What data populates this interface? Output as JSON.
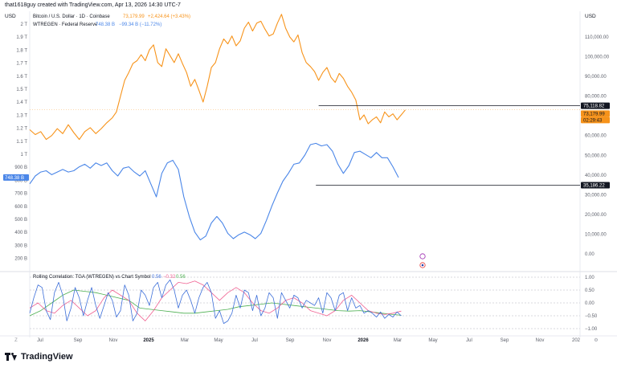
{
  "header": {
    "credit": "that1618guy created with TradingView.com, Apr 13, 2026 14:30 UTC-7"
  },
  "brand": {
    "name": "TradingView"
  },
  "colors": {
    "btc": "#f7931a",
    "walcl": "#4a86e8",
    "corr_blue": "#3d6fd9",
    "corr_red": "#f06292",
    "corr_green": "#4caf50",
    "grid": "#eef0f3",
    "axis_text": "#5d606b"
  },
  "chart_data": {
    "type": "line",
    "currency_left": "USD",
    "currency_right": "USD",
    "left_axis_labels": [
      "2 T",
      "1.9 T",
      "1.8 T",
      "1.7 T",
      "1.6 T",
      "1.5 T",
      "1.4 T",
      "1.3 T",
      "1.2 T",
      "1.1 T",
      "1 T",
      "900 B",
      "800 B",
      "700 B",
      "600 B",
      "500 B",
      "400 B",
      "300 B",
      "200 B"
    ],
    "right_axis_labels": [
      "110,000.00",
      "100,000.00",
      "90,000.00",
      "80,000.00",
      "70,000.00",
      "60,000.00",
      "50,000.00",
      "40,000.00",
      "30,000.00",
      "20,000.00",
      "10,000.00",
      "0.00"
    ],
    "right_axis_values": [
      110000,
      100000,
      90000,
      80000,
      70000,
      60000,
      50000,
      40000,
      30000,
      20000,
      10000,
      0
    ],
    "time_labels": [
      "Jul",
      "Sep",
      "Nov",
      "2025",
      "Mar",
      "May",
      "Jul",
      "Sep",
      "Nov",
      "2026",
      "Mar",
      "May",
      "Jul",
      "Sep",
      "Nov",
      "202"
    ],
    "legend_btc": {
      "label": "Bitcoin / U.S. Dollar · 1D · Coinbase",
      "price": "73,179.99",
      "change": "+2,424.64 (+3.43%)"
    },
    "legend_walcl": {
      "label": "WTREGEN · Federal Reserve",
      "value": "748.38 B",
      "change": "−99.34 B (−11.72%)"
    },
    "indicator": {
      "title": "Rolling Correlation: TGA (WTREGEN) vs Chart Symbol",
      "v1": "0.56",
      "v2": "−0.32",
      "v3": "0.56",
      "axis_labels": [
        "1.00",
        "0.50",
        "0.00",
        "−0.50",
        "−1.00"
      ],
      "axis_values": [
        1.0,
        0.5,
        0.0,
        -0.5,
        -1.0
      ]
    },
    "price_tags": {
      "hline_btc": "75,118.82",
      "btc_last": "73,179.99",
      "countdown": "02:29:43",
      "hline_walcl": "35,186.22",
      "walcl_last": "748.38 B"
    },
    "btc_price": [
      [
        0,
        63000
      ],
      [
        4,
        60500
      ],
      [
        8,
        62000
      ],
      [
        12,
        58000
      ],
      [
        16,
        60000
      ],
      [
        20,
        63500
      ],
      [
        24,
        61000
      ],
      [
        28,
        65500
      ],
      [
        32,
        61500
      ],
      [
        36,
        58000
      ],
      [
        40,
        62000
      ],
      [
        44,
        64000
      ],
      [
        48,
        61000
      ],
      [
        52,
        63500
      ],
      [
        56,
        66500
      ],
      [
        60,
        69000
      ],
      [
        63,
        72000
      ],
      [
        66,
        80000
      ],
      [
        69,
        88000
      ],
      [
        72,
        92000
      ],
      [
        75,
        96500
      ],
      [
        78,
        98000
      ],
      [
        81,
        101000
      ],
      [
        84,
        98000
      ],
      [
        87,
        103500
      ],
      [
        90,
        106000
      ],
      [
        93,
        97000
      ],
      [
        96,
        95000
      ],
      [
        99,
        104000
      ],
      [
        102,
        100500
      ],
      [
        105,
        97000
      ],
      [
        108,
        101500
      ],
      [
        111,
        96500
      ],
      [
        114,
        92000
      ],
      [
        117,
        85000
      ],
      [
        120,
        88500
      ],
      [
        123,
        83000
      ],
      [
        126,
        77000
      ],
      [
        129,
        85000
      ],
      [
        132,
        94500
      ],
      [
        135,
        97000
      ],
      [
        138,
        104000
      ],
      [
        141,
        109000
      ],
      [
        144,
        106500
      ],
      [
        147,
        110500
      ],
      [
        150,
        105500
      ],
      [
        153,
        108000
      ],
      [
        156,
        114500
      ],
      [
        159,
        117500
      ],
      [
        162,
        113000
      ],
      [
        165,
        117000
      ],
      [
        168,
        118000
      ],
      [
        171,
        114000
      ],
      [
        174,
        110500
      ],
      [
        177,
        111500
      ],
      [
        180,
        117000
      ],
      [
        183,
        121500
      ],
      [
        186,
        114500
      ],
      [
        189,
        110000
      ],
      [
        192,
        107500
      ],
      [
        195,
        111000
      ],
      [
        198,
        102000
      ],
      [
        201,
        97000
      ],
      [
        204,
        95000
      ],
      [
        207,
        92500
      ],
      [
        210,
        88000
      ],
      [
        213,
        92000
      ],
      [
        216,
        94500
      ],
      [
        219,
        89500
      ],
      [
        222,
        87000
      ],
      [
        225,
        91500
      ],
      [
        228,
        89000
      ],
      [
        231,
        85000
      ],
      [
        234,
        82000
      ],
      [
        237,
        78000
      ],
      [
        240,
        68000
      ],
      [
        243,
        70500
      ],
      [
        246,
        66000
      ],
      [
        249,
        68000
      ],
      [
        252,
        69500
      ],
      [
        255,
        66500
      ],
      [
        258,
        72000
      ],
      [
        261,
        69500
      ],
      [
        264,
        71000
      ],
      [
        267,
        68000
      ],
      [
        270,
        70500
      ],
      [
        273,
        73000
      ]
    ],
    "walcl": [
      [
        0,
        700
      ],
      [
        4,
        760
      ],
      [
        8,
        790
      ],
      [
        12,
        800
      ],
      [
        16,
        770
      ],
      [
        20,
        790
      ],
      [
        24,
        810
      ],
      [
        28,
        790
      ],
      [
        32,
        800
      ],
      [
        36,
        830
      ],
      [
        40,
        850
      ],
      [
        44,
        820
      ],
      [
        48,
        860
      ],
      [
        52,
        840
      ],
      [
        56,
        860
      ],
      [
        60,
        800
      ],
      [
        64,
        760
      ],
      [
        68,
        820
      ],
      [
        72,
        830
      ],
      [
        76,
        790
      ],
      [
        80,
        760
      ],
      [
        84,
        800
      ],
      [
        88,
        700
      ],
      [
        92,
        600
      ],
      [
        96,
        780
      ],
      [
        100,
        860
      ],
      [
        104,
        880
      ],
      [
        108,
        810
      ],
      [
        112,
        600
      ],
      [
        116,
        450
      ],
      [
        120,
        330
      ],
      [
        124,
        270
      ],
      [
        128,
        300
      ],
      [
        132,
        400
      ],
      [
        136,
        450
      ],
      [
        140,
        400
      ],
      [
        144,
        320
      ],
      [
        148,
        280
      ],
      [
        152,
        310
      ],
      [
        156,
        330
      ],
      [
        160,
        310
      ],
      [
        164,
        280
      ],
      [
        168,
        320
      ],
      [
        172,
        420
      ],
      [
        176,
        530
      ],
      [
        180,
        630
      ],
      [
        184,
        720
      ],
      [
        188,
        780
      ],
      [
        192,
        850
      ],
      [
        196,
        860
      ],
      [
        200,
        920
      ],
      [
        204,
        1000
      ],
      [
        208,
        1010
      ],
      [
        212,
        990
      ],
      [
        216,
        1000
      ],
      [
        220,
        950
      ],
      [
        224,
        850
      ],
      [
        228,
        780
      ],
      [
        232,
        840
      ],
      [
        236,
        940
      ],
      [
        240,
        950
      ],
      [
        244,
        925
      ],
      [
        248,
        900
      ],
      [
        252,
        940
      ],
      [
        256,
        900
      ],
      [
        260,
        900
      ],
      [
        264,
        830
      ],
      [
        268,
        748
      ]
    ],
    "corr_blue": [
      [
        0,
        -0.4
      ],
      [
        3,
        0.2
      ],
      [
        6,
        0.7
      ],
      [
        9,
        0.6
      ],
      [
        12,
        -0.3
      ],
      [
        15,
        -0.65
      ],
      [
        18,
        0.4
      ],
      [
        21,
        0.8
      ],
      [
        24,
        0.3
      ],
      [
        27,
        -0.7
      ],
      [
        30,
        -0.2
      ],
      [
        33,
        0.6
      ],
      [
        36,
        0.2
      ],
      [
        39,
        -0.5
      ],
      [
        42,
        0.1
      ],
      [
        45,
        0.6
      ],
      [
        48,
        -0.1
      ],
      [
        51,
        -0.6
      ],
      [
        54,
        -0.1
      ],
      [
        57,
        0.4
      ],
      [
        60,
        0.1
      ],
      [
        63,
        -0.55
      ],
      [
        66,
        -0.3
      ],
      [
        69,
        0.7
      ],
      [
        72,
        0.3
      ],
      [
        75,
        -0.7
      ],
      [
        78,
        -0.4
      ],
      [
        81,
        0.5
      ],
      [
        84,
        0.3
      ],
      [
        87,
        -0.1
      ],
      [
        90,
        0.6
      ],
      [
        93,
        0.8
      ],
      [
        96,
        0.2
      ],
      [
        99,
        0.7
      ],
      [
        102,
        0.9
      ],
      [
        105,
        0.5
      ],
      [
        108,
        -0.2
      ],
      [
        111,
        0.3
      ],
      [
        114,
        0.5
      ],
      [
        117,
        0.1
      ],
      [
        120,
        -0.4
      ],
      [
        123,
        0.2
      ],
      [
        126,
        0.6
      ],
      [
        129,
        0.8
      ],
      [
        132,
        0.4
      ],
      [
        135,
        -0.6
      ],
      [
        138,
        -0.3
      ],
      [
        141,
        -0.8
      ],
      [
        144,
        -0.7
      ],
      [
        147,
        -0.4
      ],
      [
        150,
        0.3
      ],
      [
        153,
        -0.2
      ],
      [
        156,
        0.5
      ],
      [
        159,
        0.4
      ],
      [
        162,
        -0.3
      ],
      [
        165,
        0.3
      ],
      [
        168,
        -0.5
      ],
      [
        171,
        -0.2
      ],
      [
        174,
        0.4
      ],
      [
        177,
        0.2
      ],
      [
        180,
        -0.6
      ],
      [
        183,
        0.4
      ],
      [
        186,
        0.1
      ],
      [
        189,
        -0.2
      ],
      [
        192,
        0.3
      ],
      [
        195,
        0.2
      ],
      [
        198,
        -0.2
      ],
      [
        201,
        0.1
      ],
      [
        204,
        0.0
      ],
      [
        207,
        -0.1
      ],
      [
        210,
        0.2
      ],
      [
        213,
        -0.4
      ],
      [
        216,
        0.4
      ],
      [
        219,
        0.2
      ],
      [
        222,
        -0.3
      ],
      [
        225,
        0.3
      ],
      [
        228,
        0.4
      ],
      [
        231,
        -0.3
      ],
      [
        234,
        0.2
      ],
      [
        237,
        -0.2
      ],
      [
        240,
        -0.1
      ],
      [
        243,
        -0.4
      ],
      [
        246,
        -0.3
      ],
      [
        249,
        -0.4
      ],
      [
        252,
        -0.55
      ],
      [
        255,
        -0.35
      ],
      [
        258,
        -0.6
      ],
      [
        261,
        -0.45
      ],
      [
        264,
        -0.55
      ],
      [
        267,
        -0.35
      ],
      [
        270,
        -0.5
      ]
    ],
    "corr_red": [
      [
        0,
        -0.2
      ],
      [
        6,
        0.0
      ],
      [
        12,
        -0.3
      ],
      [
        18,
        -0.4
      ],
      [
        24,
        -0.1
      ],
      [
        30,
        0.1
      ],
      [
        36,
        -0.2
      ],
      [
        42,
        -0.5
      ],
      [
        48,
        -0.3
      ],
      [
        54,
        0.2
      ],
      [
        60,
        0.5
      ],
      [
        66,
        0.3
      ],
      [
        72,
        0.1
      ],
      [
        78,
        -0.4
      ],
      [
        84,
        -0.7
      ],
      [
        90,
        -0.3
      ],
      [
        96,
        0.2
      ],
      [
        102,
        0.5
      ],
      [
        108,
        0.8
      ],
      [
        114,
        0.75
      ],
      [
        120,
        0.85
      ],
      [
        126,
        0.7
      ],
      [
        132,
        0.4
      ],
      [
        138,
        0.1
      ],
      [
        144,
        0.4
      ],
      [
        150,
        0.6
      ],
      [
        156,
        0.4
      ],
      [
        162,
        0.0
      ],
      [
        168,
        -0.3
      ],
      [
        174,
        -0.4
      ],
      [
        180,
        -0.2
      ],
      [
        186,
        0.1
      ],
      [
        192,
        0.2
      ],
      [
        198,
        0.0
      ],
      [
        204,
        -0.3
      ],
      [
        210,
        -0.4
      ],
      [
        216,
        -0.5
      ],
      [
        222,
        -0.3
      ],
      [
        228,
        0.1
      ],
      [
        234,
        0.3
      ],
      [
        240,
        0.0
      ],
      [
        246,
        -0.3
      ],
      [
        252,
        -0.4
      ],
      [
        258,
        -0.45
      ],
      [
        264,
        -0.4
      ],
      [
        270,
        -0.32
      ]
    ],
    "corr_green": [
      [
        0,
        -0.5
      ],
      [
        8,
        -0.3
      ],
      [
        16,
        0.0
      ],
      [
        24,
        0.3
      ],
      [
        32,
        0.5
      ],
      [
        40,
        0.45
      ],
      [
        48,
        0.4
      ],
      [
        56,
        0.3
      ],
      [
        64,
        0.2
      ],
      [
        72,
        0.1
      ],
      [
        80,
        -0.2
      ],
      [
        88,
        -0.25
      ],
      [
        96,
        -0.3
      ],
      [
        104,
        -0.35
      ],
      [
        112,
        -0.4
      ],
      [
        120,
        -0.4
      ],
      [
        128,
        -0.35
      ],
      [
        136,
        -0.3
      ],
      [
        144,
        -0.25
      ],
      [
        152,
        -0.15
      ],
      [
        160,
        -0.1
      ],
      [
        168,
        -0.05
      ],
      [
        176,
        0.0
      ],
      [
        184,
        -0.05
      ],
      [
        192,
        -0.1
      ],
      [
        200,
        -0.15
      ],
      [
        208,
        -0.2
      ],
      [
        216,
        -0.25
      ],
      [
        224,
        -0.3
      ],
      [
        232,
        -0.32
      ],
      [
        240,
        -0.3
      ],
      [
        248,
        -0.35
      ],
      [
        256,
        -0.4
      ],
      [
        264,
        -0.45
      ],
      [
        270,
        -0.48
      ]
    ]
  }
}
